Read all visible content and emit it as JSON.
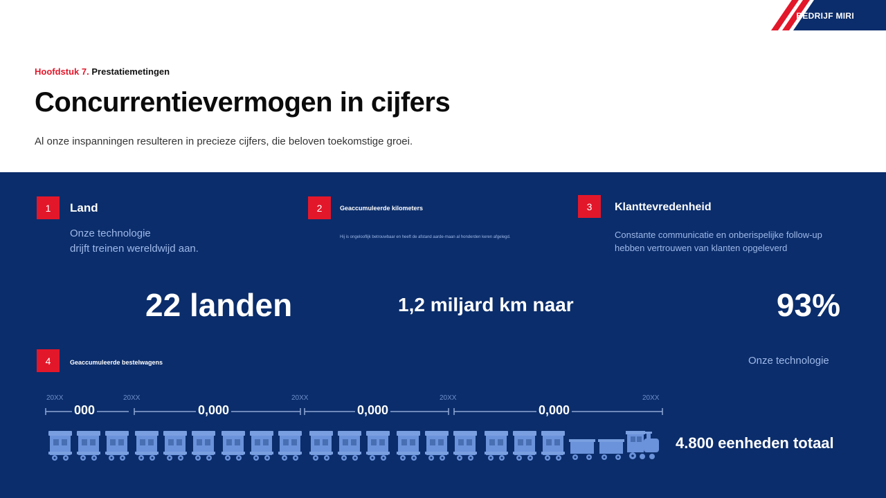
{
  "header": {
    "brand": "BEDRIJF MIRI",
    "colors": {
      "accent_red": "#e3172a",
      "brand_blue": "#0b2d6b"
    }
  },
  "intro": {
    "chapter_number": "Hoofdstuk 7.",
    "chapter_name": "Prestatiemetingen",
    "title": "Concurrentievermogen in cijfers",
    "subtitle": "Al onze inspanningen resulteren in precieze cijfers, die beloven toekomstige groei."
  },
  "metrics": [
    {
      "number": "1",
      "label": "Land",
      "description_line1": "Onze technologie",
      "description_line2": "drijft treinen wereldwijd aan.",
      "value": "22 landen"
    },
    {
      "number": "2",
      "label": "Geaccumuleerde kilometers",
      "description": "Hij is ongelooflijk betrouwbaar en heeft de afstand aarde-maan al honderden keren afgelegd.",
      "value": "1,2 miljard km naar"
    },
    {
      "number": "3",
      "label": "Klanttevredenheid",
      "description_line1": "Constante communicatie en onberispelijke follow-up",
      "description_line2": "hebben vertrouwen van klanten opgeleverd",
      "value": "93%"
    }
  ],
  "wagons": {
    "number": "4",
    "label": "Geaccumuleerde bestelwagens",
    "side_note": "Onze technologie",
    "total": "4.800 eenheden totaal",
    "timeline": [
      {
        "year": "20XX",
        "value": "000"
      },
      {
        "year": "20XX",
        "value": "0,000"
      },
      {
        "year": "20XX",
        "value": "0,000"
      },
      {
        "year": "20XX",
        "value": "0,000"
      },
      {
        "year": "20XX"
      }
    ],
    "train_icon": "train-icon",
    "wagon_icon": "wagon-icon"
  }
}
